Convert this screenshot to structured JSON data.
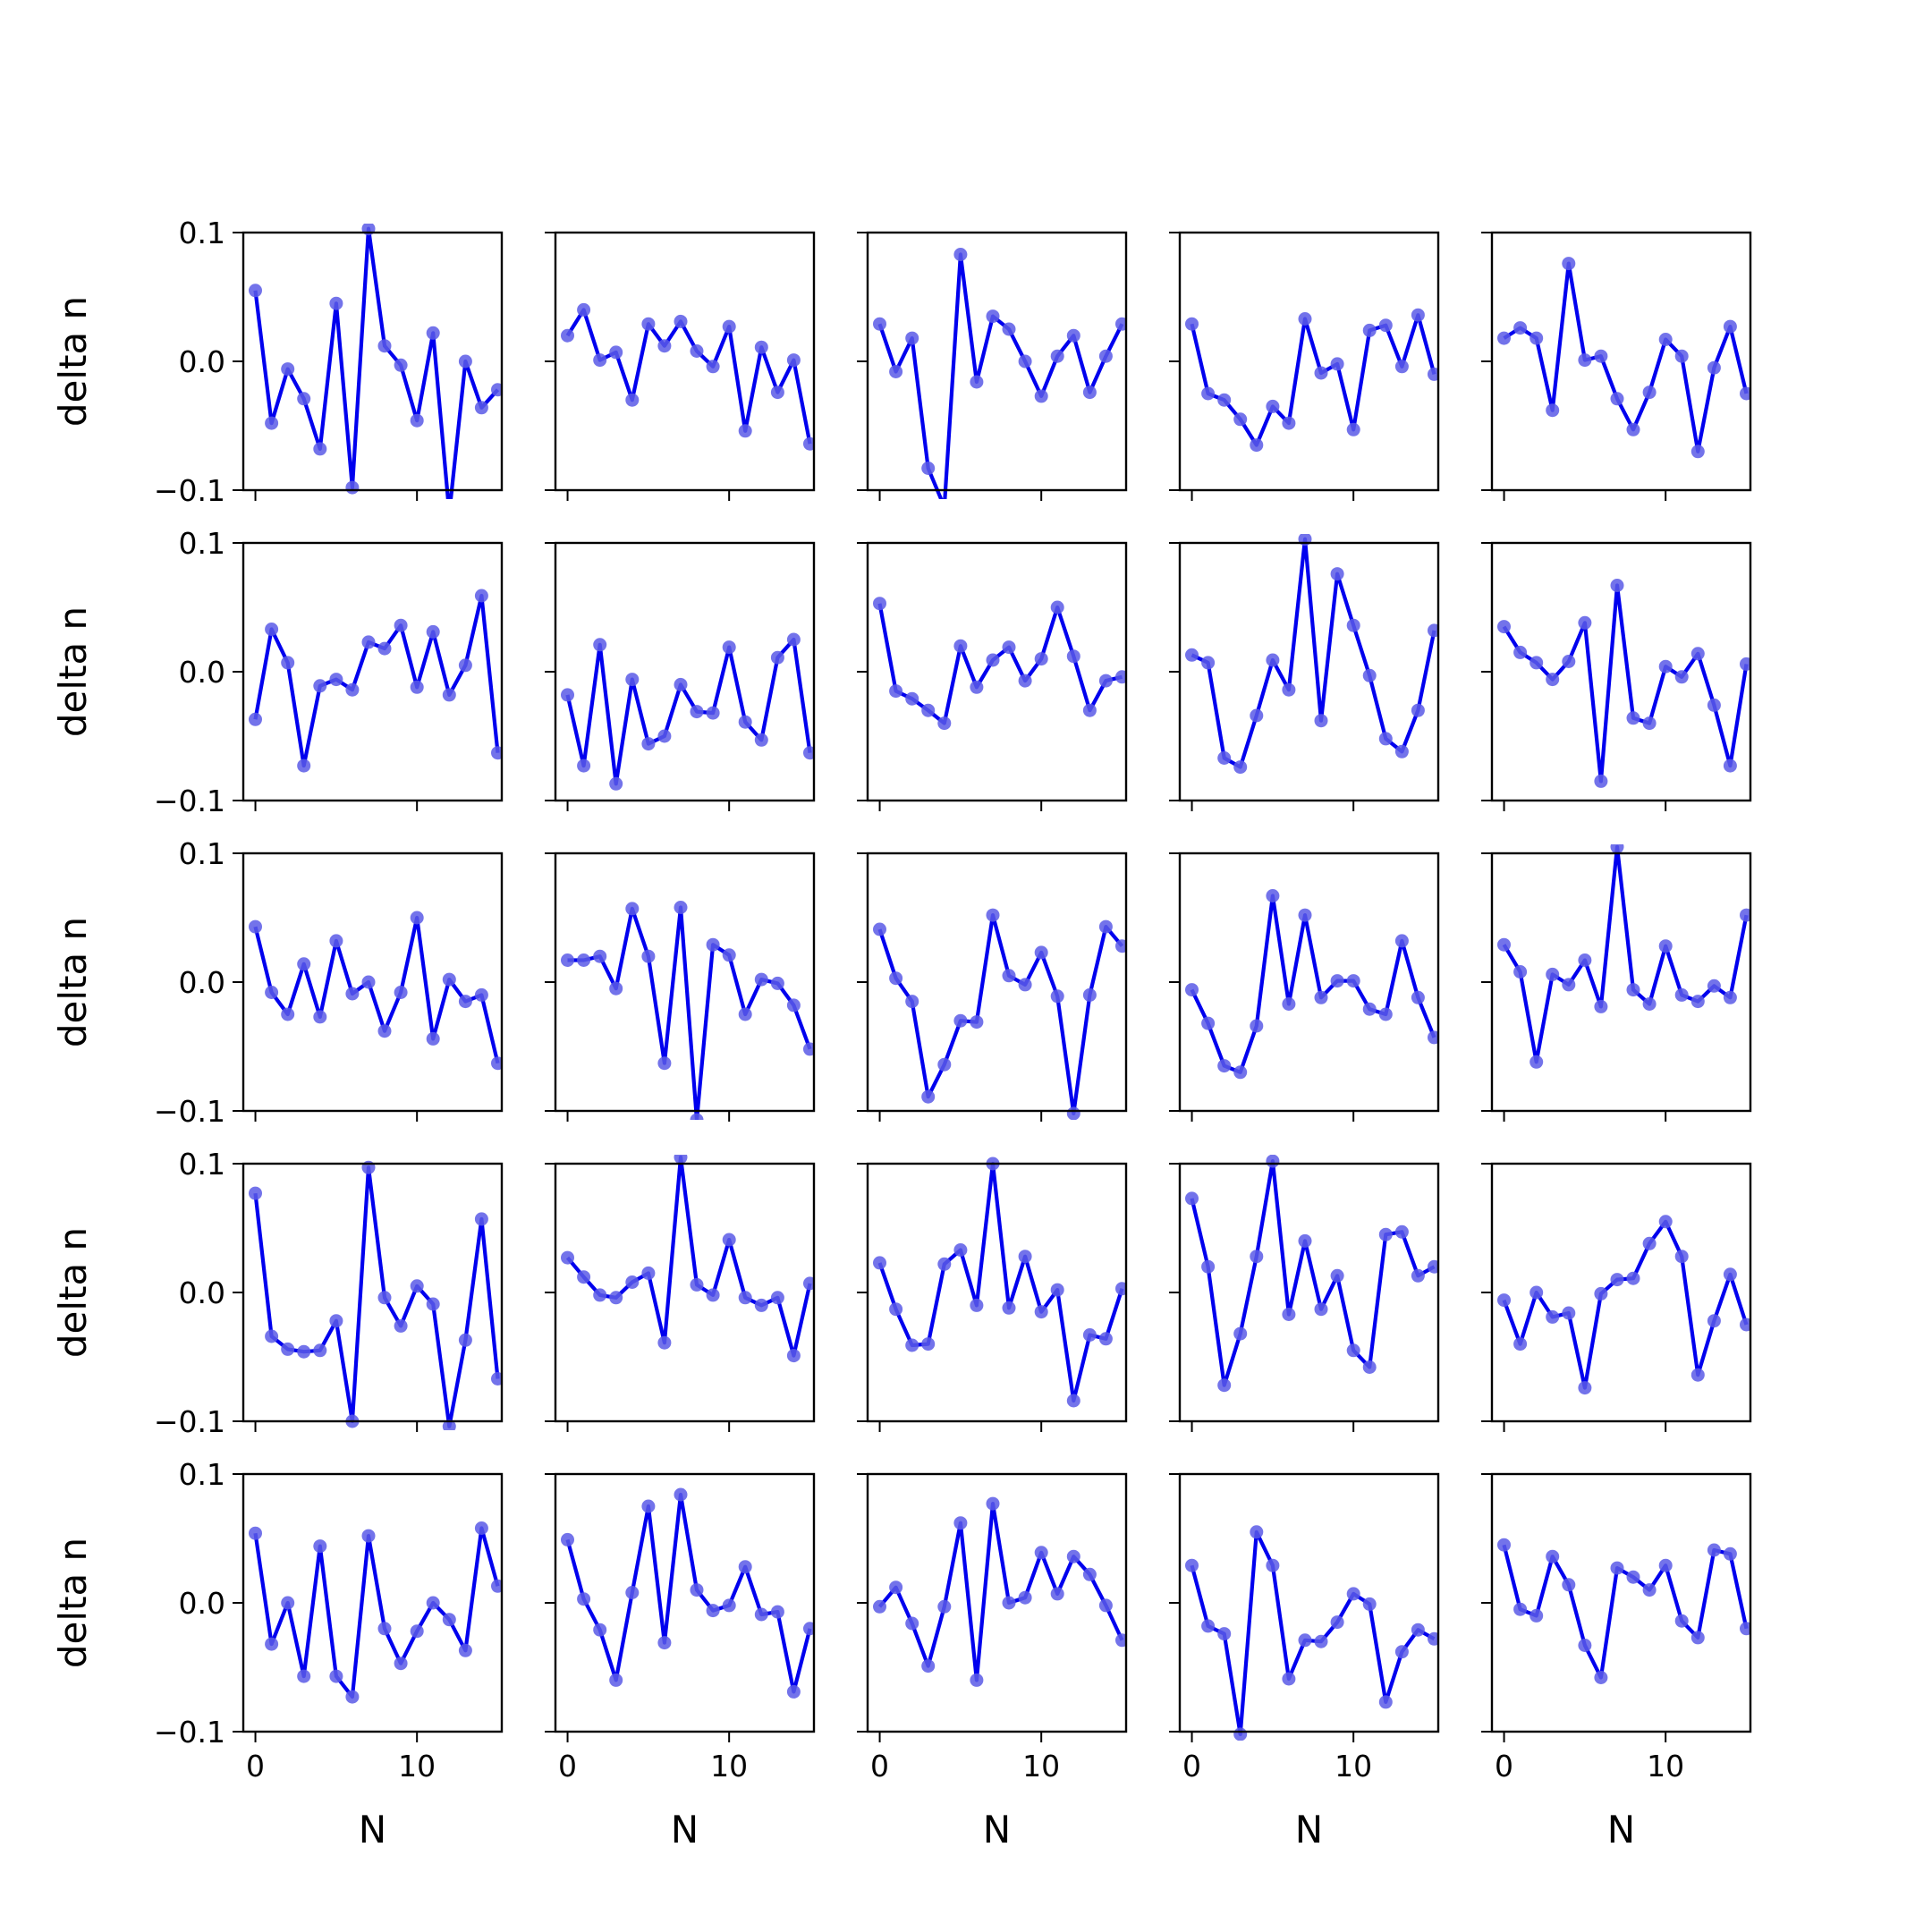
{
  "chart_data": {
    "type": "line",
    "layout": "5x5 grid of small multiples",
    "xlabel": "N",
    "ylabel": "delta n",
    "xlim": [
      -0.75,
      15.25
    ],
    "ylim": [
      -0.1,
      0.1
    ],
    "xticks": [
      0,
      10
    ],
    "xtick_labels": [
      "0",
      "10"
    ],
    "yticks": [
      -0.1,
      0.0,
      0.1
    ],
    "ytick_labels": [
      "−0.1",
      "0.0",
      "0.1"
    ],
    "grid": false,
    "legend": "none",
    "series_color": "#0000ee",
    "marker_color": "#5a5ae6",
    "x": [
      0,
      1,
      2,
      3,
      4,
      5,
      6,
      7,
      8,
      9,
      10,
      11,
      12,
      13,
      14,
      15
    ],
    "panels": [
      [
        [
          0.055,
          -0.048,
          -0.006,
          -0.029,
          -0.068,
          0.045,
          -0.098,
          0.103,
          0.012,
          -0.003,
          -0.046,
          0.022,
          -0.118,
          0.0,
          -0.036,
          -0.022
        ],
        [
          0.02,
          0.04,
          0.001,
          0.007,
          -0.03,
          0.029,
          0.012,
          0.031,
          0.008,
          -0.004,
          0.027,
          -0.054,
          0.011,
          -0.024,
          0.001,
          -0.064
        ],
        [
          0.029,
          -0.008,
          0.018,
          -0.083,
          -0.113,
          0.083,
          -0.016,
          0.035,
          0.025,
          0.0,
          -0.027,
          0.004,
          0.02,
          -0.024,
          0.004,
          0.029
        ],
        [
          0.029,
          -0.025,
          -0.03,
          -0.045,
          -0.065,
          -0.035,
          -0.048,
          0.033,
          -0.009,
          -0.002,
          -0.053,
          0.024,
          0.028,
          -0.004,
          0.036,
          -0.01
        ],
        [
          0.018,
          0.026,
          0.018,
          -0.038,
          0.076,
          0.001,
          0.004,
          -0.029,
          -0.053,
          -0.024,
          0.017,
          0.004,
          -0.07,
          -0.005,
          0.027,
          -0.025
        ]
      ],
      [
        [
          -0.037,
          0.033,
          0.007,
          -0.073,
          -0.011,
          -0.006,
          -0.014,
          0.023,
          0.018,
          0.036,
          -0.012,
          0.031,
          -0.018,
          0.005,
          0.059,
          -0.063
        ],
        [
          -0.018,
          -0.073,
          0.021,
          -0.087,
          -0.006,
          -0.056,
          -0.05,
          -0.01,
          -0.031,
          -0.032,
          0.019,
          -0.039,
          -0.053,
          0.011,
          0.025,
          -0.063
        ],
        [
          0.053,
          -0.015,
          -0.021,
          -0.03,
          -0.04,
          0.02,
          -0.012,
          0.009,
          0.019,
          -0.007,
          0.01,
          0.05,
          0.012,
          -0.03,
          -0.007,
          -0.004
        ],
        [
          0.013,
          0.007,
          -0.067,
          -0.074,
          -0.034,
          0.009,
          -0.014,
          0.103,
          -0.038,
          0.076,
          0.036,
          -0.003,
          -0.052,
          -0.062,
          -0.03,
          0.032
        ],
        [
          0.035,
          0.015,
          0.007,
          -0.006,
          0.008,
          0.038,
          -0.085,
          0.067,
          -0.036,
          -0.04,
          0.004,
          -0.004,
          0.014,
          -0.026,
          -0.073,
          0.006
        ]
      ],
      [
        [
          0.043,
          -0.008,
          -0.025,
          0.014,
          -0.027,
          0.032,
          -0.009,
          0.0,
          -0.038,
          -0.008,
          0.05,
          -0.044,
          0.002,
          -0.015,
          -0.01,
          -0.063
        ],
        [
          0.017,
          0.017,
          0.02,
          -0.005,
          0.057,
          0.02,
          -0.063,
          0.058,
          -0.107,
          0.029,
          0.021,
          -0.025,
          0.002,
          -0.001,
          -0.018,
          -0.052
        ],
        [
          0.041,
          0.003,
          -0.015,
          -0.089,
          -0.064,
          -0.03,
          -0.031,
          0.052,
          0.005,
          -0.002,
          0.023,
          -0.011,
          -0.102,
          -0.01,
          0.043,
          0.028
        ],
        [
          -0.006,
          -0.032,
          -0.065,
          -0.07,
          -0.034,
          0.067,
          -0.017,
          0.052,
          -0.012,
          0.001,
          0.001,
          -0.021,
          -0.025,
          0.032,
          -0.012,
          -0.043
        ],
        [
          0.029,
          0.008,
          -0.062,
          0.006,
          -0.002,
          0.017,
          -0.019,
          0.105,
          -0.006,
          -0.017,
          0.028,
          -0.01,
          -0.015,
          -0.003,
          -0.012,
          0.052
        ]
      ],
      [
        [
          0.077,
          -0.034,
          -0.044,
          -0.046,
          -0.045,
          -0.022,
          -0.1,
          0.097,
          -0.004,
          -0.026,
          0.005,
          -0.009,
          -0.104,
          -0.037,
          0.057,
          -0.067
        ],
        [
          0.027,
          0.012,
          -0.002,
          -0.004,
          0.008,
          0.015,
          -0.039,
          0.105,
          0.006,
          -0.002,
          0.041,
          -0.004,
          -0.01,
          -0.004,
          -0.049,
          0.007
        ],
        [
          0.023,
          -0.013,
          -0.041,
          -0.04,
          0.022,
          0.033,
          -0.01,
          0.1,
          -0.012,
          0.028,
          -0.015,
          0.002,
          -0.084,
          -0.033,
          -0.036,
          0.003
        ],
        [
          0.073,
          0.02,
          -0.072,
          -0.032,
          0.028,
          0.102,
          -0.017,
          0.04,
          -0.013,
          0.013,
          -0.045,
          -0.058,
          0.045,
          0.047,
          0.013,
          0.02
        ],
        [
          -0.006,
          -0.04,
          0.0,
          -0.019,
          -0.016,
          -0.074,
          -0.001,
          0.01,
          0.011,
          0.038,
          0.055,
          0.028,
          -0.064,
          -0.022,
          0.014,
          -0.025
        ]
      ],
      [
        [
          0.054,
          -0.032,
          0.0,
          -0.057,
          0.044,
          -0.057,
          -0.073,
          0.052,
          -0.02,
          -0.047,
          -0.022,
          0.0,
          -0.013,
          -0.037,
          0.058,
          0.013
        ],
        [
          0.049,
          0.003,
          -0.021,
          -0.06,
          0.008,
          0.075,
          -0.031,
          0.084,
          0.01,
          -0.006,
          -0.002,
          0.028,
          -0.009,
          -0.007,
          -0.069,
          -0.02
        ],
        [
          -0.003,
          0.012,
          -0.016,
          -0.049,
          -0.003,
          0.062,
          -0.06,
          0.077,
          0.0,
          0.004,
          0.039,
          0.007,
          0.036,
          0.022,
          -0.002,
          -0.029
        ],
        [
          0.029,
          -0.018,
          -0.024,
          -0.102,
          0.055,
          0.029,
          -0.059,
          -0.029,
          -0.03,
          -0.015,
          0.007,
          -0.001,
          -0.077,
          -0.038,
          -0.021,
          -0.028
        ],
        [
          0.045,
          -0.005,
          -0.01,
          0.036,
          0.014,
          -0.033,
          -0.058,
          0.027,
          0.02,
          0.01,
          0.029,
          -0.014,
          -0.027,
          0.041,
          0.038,
          -0.02
        ]
      ]
    ]
  }
}
